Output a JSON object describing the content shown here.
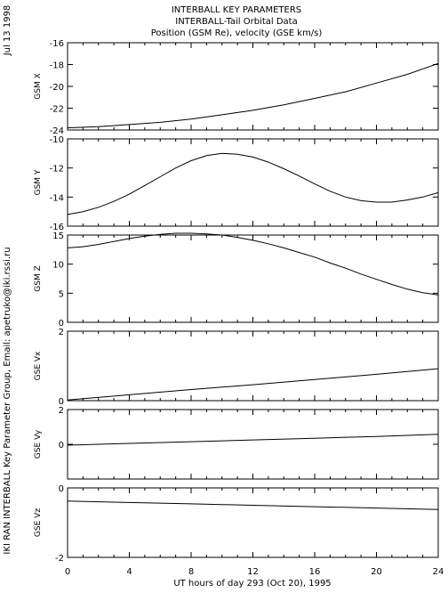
{
  "header": {
    "line1": "INTERBALL KEY PARAMETERS",
    "line2": "INTERBALL-Tail Orbital Data",
    "line3": "Position (GSM Re), velocity (GSE km/s)"
  },
  "date_label": "Jul 13 1998",
  "side_credit": "IKI RAN INTERBALL Key Parameter Group, Email: apetruko@iki.rssi.ru",
  "colors": {
    "line": "#000000",
    "background": "#ffffff"
  },
  "chart_data": {
    "type": "line",
    "xlabel": "UT hours of day 293 (Oct 20), 1995",
    "xlim": [
      0,
      24
    ],
    "xticks": [
      0,
      4,
      8,
      12,
      16,
      20,
      24
    ],
    "panels": [
      {
        "ylabel": "GSM X",
        "ylim": [
          -24,
          -16
        ],
        "yticks": [
          -24,
          -22,
          -20,
          -18,
          -16
        ],
        "x": [
          0,
          2,
          4,
          6,
          8,
          10,
          12,
          14,
          16,
          18,
          20,
          22,
          24
        ],
        "y": [
          -23.8,
          -23.7,
          -23.5,
          -23.3,
          -23.0,
          -22.6,
          -22.2,
          -21.7,
          -21.1,
          -20.5,
          -19.7,
          -18.9,
          -17.9
        ]
      },
      {
        "ylabel": "GSM Y",
        "ylim": [
          -16,
          -10
        ],
        "yticks": [
          -16,
          -14,
          -12,
          -10
        ],
        "x": [
          0,
          1,
          2,
          3,
          4,
          5,
          6,
          7,
          8,
          9,
          10,
          11,
          12,
          13,
          14,
          15,
          16,
          17,
          18,
          19,
          20,
          21,
          22,
          23,
          24
        ],
        "y": [
          -15.2,
          -15.0,
          -14.7,
          -14.3,
          -13.8,
          -13.2,
          -12.6,
          -12.0,
          -11.5,
          -11.15,
          -11.0,
          -11.05,
          -11.25,
          -11.6,
          -12.05,
          -12.55,
          -13.1,
          -13.6,
          -14.0,
          -14.25,
          -14.35,
          -14.35,
          -14.2,
          -14.0,
          -13.7
        ]
      },
      {
        "ylabel": "GSM Z",
        "ylim": [
          0,
          15
        ],
        "yticks": [
          0,
          5,
          10,
          15
        ],
        "x": [
          0,
          1,
          2,
          3,
          4,
          5,
          6,
          7,
          8,
          9,
          10,
          11,
          12,
          13,
          14,
          15,
          16,
          17,
          18,
          19,
          20,
          21,
          22,
          23,
          24
        ],
        "y": [
          12.8,
          13.0,
          13.4,
          13.9,
          14.4,
          14.8,
          15.1,
          15.3,
          15.3,
          15.2,
          15.0,
          14.6,
          14.1,
          13.5,
          12.8,
          12.0,
          11.2,
          10.2,
          9.3,
          8.3,
          7.4,
          6.5,
          5.7,
          5.1,
          4.7
        ]
      },
      {
        "ylabel": "GSE Vx",
        "ylim": [
          0,
          2
        ],
        "yticks": [
          0,
          2
        ],
        "x": [
          0,
          4,
          8,
          12,
          16,
          20,
          24
        ],
        "y": [
          0.02,
          0.17,
          0.32,
          0.46,
          0.61,
          0.76,
          0.92
        ]
      },
      {
        "ylabel": "GSE Vy",
        "ylim": [
          -2,
          2
        ],
        "yticks": [
          0,
          2
        ],
        "x": [
          0,
          4,
          8,
          12,
          16,
          20,
          24
        ],
        "y": [
          -0.05,
          0.05,
          0.15,
          0.25,
          0.35,
          0.45,
          0.58
        ]
      },
      {
        "ylabel": "GSE Vz",
        "ylim": [
          -2,
          0
        ],
        "yticks": [
          -2,
          0
        ],
        "x": [
          0,
          4,
          8,
          12,
          16,
          20,
          24
        ],
        "y": [
          -0.38,
          -0.42,
          -0.46,
          -0.5,
          -0.54,
          -0.58,
          -0.62
        ]
      }
    ]
  }
}
